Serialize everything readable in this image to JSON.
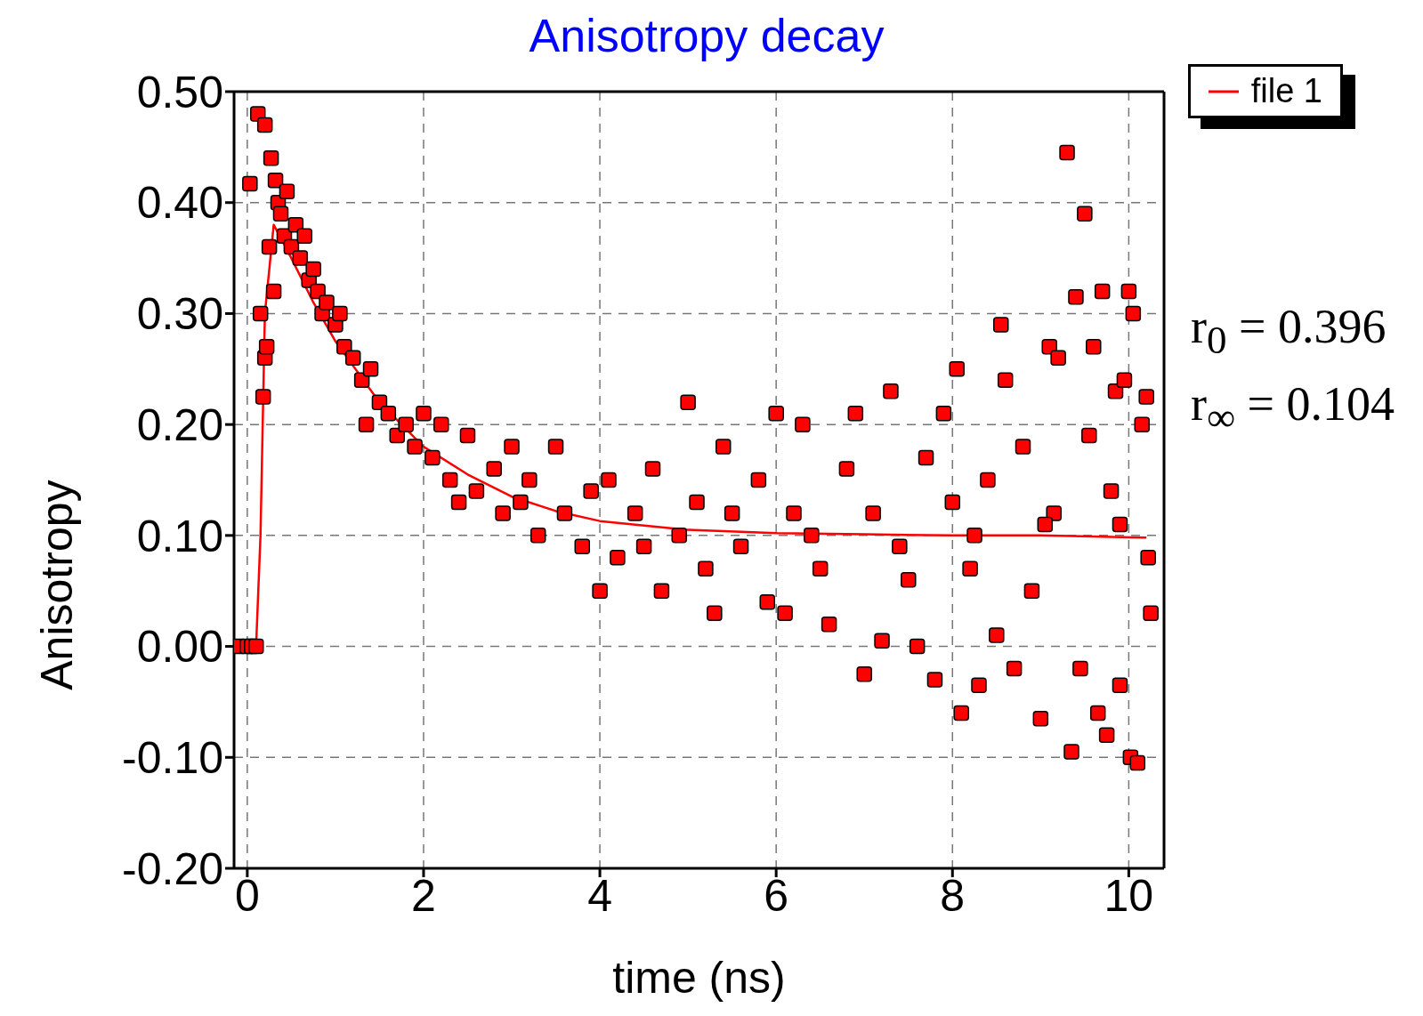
{
  "chart_data": {
    "type": "scatter",
    "title": "Anisotropy decay",
    "xlabel": "time (ns)",
    "ylabel": "Anisotropy",
    "xlim": [
      -0.15,
      10.4
    ],
    "xticks": [
      0,
      2,
      4,
      6,
      8,
      10
    ],
    "ylim": [
      -0.2,
      0.5
    ],
    "yticks": [
      {
        "value": -0.2,
        "label": "-0.20"
      },
      {
        "value": -0.1,
        "label": "-0.10"
      },
      {
        "value": 0,
        "label": "0.00"
      },
      {
        "value": 0.1,
        "label": "0.10"
      },
      {
        "value": 0.2,
        "label": "0.20"
      },
      {
        "value": 0.3,
        "label": "0.30"
      },
      {
        "value": 0.4,
        "label": "0.40"
      },
      {
        "value": 0.5,
        "label": "0.50"
      }
    ],
    "grid": true,
    "legend": "top right",
    "annotations": [
      "r$_{0}$ = 0.396",
      "r$_{∞}$ = 0.104"
    ],
    "series": [
      {
        "marker": "square",
        "color": "#ff0000",
        "x": [
          -0.1,
          0,
          0.05,
          0.1,
          0.03,
          0.12,
          0.2,
          0.15,
          0.18,
          0.2,
          0.22,
          0.25,
          0.27,
          0.3,
          0.32,
          0.35,
          0.38,
          0.42,
          0.45,
          0.5,
          0.55,
          0.6,
          0.65,
          0.7,
          0.75,
          0.8,
          0.85,
          0.9,
          1.0,
          1.05,
          1.1,
          1.2,
          1.3,
          1.35,
          1.4,
          1.5,
          1.6,
          1.7,
          1.8,
          1.9,
          2.0,
          2.1,
          2.2,
          2.3,
          2.5,
          2.6,
          2.8,
          2.9,
          3.0,
          3.1,
          3.3,
          3.5,
          3.6,
          3.8,
          3.9,
          4.0,
          4.1,
          4.2,
          4.4,
          4.6,
          4.7,
          4.9,
          5.0,
          5.1,
          5.2,
          5.3,
          5.4,
          5.6,
          5.8,
          5.9,
          6.0,
          6.1,
          6.2,
          6.3,
          6.5,
          6.6,
          6.8,
          6.9,
          7.0,
          7.1,
          7.2,
          7.3,
          7.5,
          7.6,
          7.7,
          7.8,
          7.9,
          8.0,
          8.05,
          8.1,
          8.2,
          8.3,
          8.4,
          8.5,
          8.55,
          8.6,
          8.7,
          8.8,
          8.9,
          9.0,
          9.1,
          9.15,
          9.2,
          9.3,
          9.35,
          9.4,
          9.45,
          9.5,
          9.55,
          9.6,
          9.65,
          9.7,
          9.75,
          9.8,
          9.85,
          9.9,
          9.95,
          10.0,
          10.02,
          10.05,
          10.1,
          10.15,
          10.2,
          10.22,
          10.25,
          2.4,
          3.2,
          4.5,
          5.5,
          6.4,
          7.4,
          8.25,
          9.05,
          9.9
        ],
        "values": [
          0,
          0,
          0,
          0,
          0.417,
          0.48,
          0.47,
          0.3,
          0.225,
          0.26,
          0.27,
          0.36,
          0.44,
          0.32,
          0.42,
          0.4,
          0.39,
          0.37,
          0.41,
          0.36,
          0.38,
          0.35,
          0.37,
          0.33,
          0.34,
          0.32,
          0.3,
          0.31,
          0.29,
          0.3,
          0.27,
          0.26,
          0.24,
          0.2,
          0.25,
          0.22,
          0.21,
          0.19,
          0.2,
          0.18,
          0.21,
          0.17,
          0.2,
          0.15,
          0.19,
          0.14,
          0.16,
          0.12,
          0.18,
          0.13,
          0.1,
          0.18,
          0.12,
          0.09,
          0.14,
          0.05,
          0.15,
          0.08,
          0.12,
          0.16,
          0.05,
          0.1,
          0.22,
          0.13,
          0.07,
          0.03,
          0.18,
          0.09,
          0.15,
          0.04,
          0.21,
          0.03,
          0.12,
          0.2,
          0.07,
          0.02,
          0.16,
          0.21,
          -0.025,
          0.12,
          0.005,
          0.23,
          0.06,
          0.0,
          0.17,
          -0.03,
          0.21,
          0.13,
          0.25,
          -0.06,
          0.07,
          -0.035,
          0.15,
          0.01,
          0.29,
          0.24,
          -0.02,
          0.18,
          0.05,
          -0.065,
          0.27,
          0.12,
          0.26,
          0.445,
          -0.095,
          0.315,
          -0.02,
          0.39,
          0.19,
          0.27,
          -0.06,
          0.32,
          -0.08,
          0.14,
          0.23,
          -0.035,
          0.24,
          0.32,
          -0.1,
          0.3,
          -0.105,
          0.2,
          0.225,
          0.08,
          0.03,
          0.13,
          0.15,
          0.09,
          0.12,
          0.1,
          0.09,
          0.1,
          0.11,
          0.11
        ]
      },
      {
        "type": "line",
        "name": "file 1",
        "color": "#ff0000",
        "x": [
          -0.1,
          0.1,
          0.15,
          0.2,
          0.3,
          0.5,
          0.75,
          1,
          1.5,
          2,
          2.5,
          3,
          3.5,
          4,
          5,
          6,
          7,
          8,
          9,
          10.2
        ],
        "values": [
          0,
          0,
          0.1,
          0.3,
          0.38,
          0.35,
          0.31,
          0.275,
          0.22,
          0.18,
          0.155,
          0.135,
          0.122,
          0.113,
          0.105,
          0.102,
          0.101,
          0.1,
          0.1,
          0.098
        ]
      }
    ]
  }
}
